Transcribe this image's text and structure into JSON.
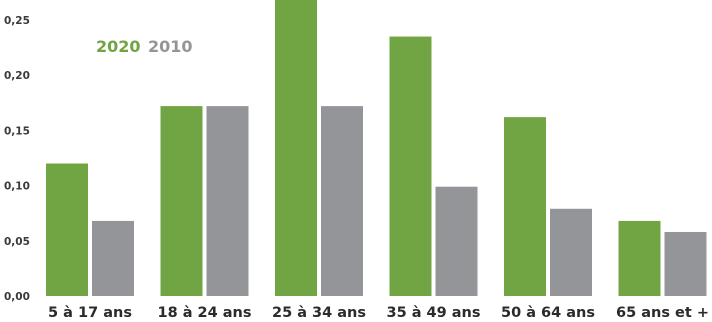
{
  "chart_data": {
    "type": "bar",
    "title": "",
    "xlabel": "",
    "ylabel": "",
    "categories": [
      "5 à 17 ans",
      "18 à 24 ans",
      "25 à 34 ans",
      "35 à 49 ans",
      "50 à 64 ans",
      "65 ans et +"
    ],
    "series": [
      {
        "name": "2020",
        "color": "#71a443",
        "values": [
          0.12,
          0.172,
          0.27,
          0.235,
          0.162,
          0.068
        ]
      },
      {
        "name": "2010",
        "color": "#939598",
        "values": [
          0.068,
          0.172,
          0.172,
          0.099,
          0.079,
          0.058
        ]
      }
    ],
    "ylim": [
      0,
      0.25
    ],
    "yticks": [
      0.0,
      0.05,
      0.1,
      0.15,
      0.2,
      0.25
    ],
    "ytick_labels": [
      "0,00",
      "0,05",
      "0,10",
      "0,15",
      "0,20",
      "0,25"
    ],
    "legend": {
      "position": "top-left",
      "entries": [
        "2020",
        "2010"
      ]
    },
    "grid": false
  }
}
